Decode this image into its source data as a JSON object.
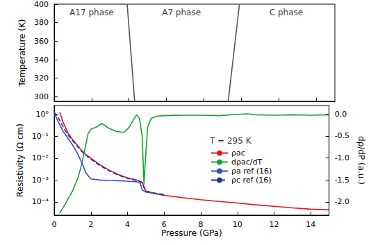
{
  "chart_data": [
    {
      "type": "line",
      "ylabel": "Temperature (K)",
      "xlim": [
        0,
        15
      ],
      "xticks": [
        0,
        2,
        4,
        6,
        8,
        10,
        12,
        14
      ],
      "ylim": [
        295,
        400
      ],
      "yticks": [
        300,
        320,
        340,
        360,
        380,
        400
      ],
      "grid": false,
      "tick_labels": "y",
      "series": [
        {
          "color": "#555555",
          "line_style": "solid",
          "x": [
            4.3,
            3.9
          ],
          "values": [
            295,
            400
          ]
        },
        {
          "color": "#555555",
          "line_style": "solid",
          "x": [
            9.3,
            9.9
          ],
          "values": [
            295,
            400
          ]
        }
      ],
      "annotations": [
        {
          "text": "A17 phase",
          "x": 2.0,
          "y": 391
        },
        {
          "text": "A7 phase",
          "x": 6.8,
          "y": 391
        },
        {
          "text": "C phase",
          "x": 12.4,
          "y": 391
        }
      ]
    },
    {
      "type": "line",
      "xlabel": "Pressure (GPa)",
      "ylabel": "Resistivity (Ω cm)",
      "y2label": "dρ/dP (a.u.)",
      "log": "y",
      "grid": false,
      "legend": "right",
      "xlim": [
        0,
        15
      ],
      "xticks": [
        0,
        2,
        4,
        6,
        8,
        10,
        12,
        14
      ],
      "ylim": [
        2.5e-05,
        2.5
      ],
      "yticks": [
        {
          "value": 0.0001,
          "label": "10⁻⁴"
        },
        {
          "value": 0.001,
          "label": "10⁻³"
        },
        {
          "value": 0.01,
          "label": "10⁻²"
        },
        {
          "value": 0.1,
          "label": "10⁻¹"
        },
        {
          "value": 1,
          "label": "10⁰"
        }
      ],
      "y2lim": [
        -2.3,
        0.19
      ],
      "y2ticks": [
        {
          "value": -2,
          "label": "-2.0"
        },
        -1.5,
        {
          "value": -1,
          "label": "-1.0"
        },
        -0.5,
        {
          "value": 0,
          "label": "0.0"
        }
      ],
      "series": [
        {
          "name": "ρac",
          "color": "#e8141c",
          "line_style": "solid",
          "x": [
            0.3,
            0.5,
            0.75,
            1.0,
            1.25,
            1.5,
            1.75,
            2.0,
            2.5,
            3.0,
            3.5,
            4.0,
            4.5,
            4.8,
            4.9,
            5.0,
            5.2,
            5.5,
            6,
            7,
            8,
            9,
            10,
            11,
            12,
            13,
            14,
            15
          ],
          "values": [
            1.26,
            0.4,
            0.141,
            0.0708,
            0.0398,
            0.0224,
            0.0141,
            0.01,
            0.005,
            0.00282,
            0.00178,
            0.00126,
            0.001,
            0.000794,
            0.000501,
            0.000316,
            0.000282,
            0.00024,
            0.0002,
            0.000158,
            0.000126,
            0.000105,
            8.91e-05,
            7.41e-05,
            6.31e-05,
            5.37e-05,
            4.68e-05,
            4.37e-05
          ]
        },
        {
          "name": "dρac/dT",
          "color": "#12a33a",
          "line_style": "solid",
          "axis": "y2",
          "x": [
            0.3,
            0.6,
            1.0,
            1.3,
            1.5,
            1.7,
            1.85,
            2.0,
            2.3,
            2.6,
            3.0,
            3.4,
            3.8,
            4.1,
            4.3,
            4.5,
            4.65,
            4.8,
            4.9,
            5.0,
            5.1,
            5.3,
            5.6,
            6,
            7,
            8,
            9,
            10,
            10.5,
            11,
            12,
            13,
            14,
            15
          ],
          "values": [
            -2.25,
            -2.05,
            -1.75,
            -1.45,
            -1.15,
            -0.75,
            -0.45,
            -0.35,
            -0.3,
            -0.22,
            -0.33,
            -0.4,
            -0.42,
            -0.3,
            -0.15,
            -0.02,
            -0.1,
            -0.5,
            -1.6,
            -0.9,
            -0.3,
            -0.1,
            -0.05,
            -0.04,
            -0.03,
            -0.03,
            -0.04,
            -0.01,
            0.0,
            -0.02,
            -0.03,
            -0.02,
            -0.03,
            -0.02
          ]
        },
        {
          "name": "ρa ref (16)",
          "color": "#3848c8",
          "line_style": "solid",
          "x": [
            0,
            0.25,
            0.5,
            0.75,
            1.0,
            1.25,
            1.5,
            1.75,
            2.0,
            2.5,
            3,
            3.5,
            4,
            4.5,
            4.7,
            4.8,
            5.0,
            5.5,
            6.0
          ],
          "values": [
            1.12,
            0.398,
            0.158,
            0.0794,
            0.0398,
            0.0178,
            0.00631,
            0.002,
            0.00112,
            0.001,
            0.000955,
            0.000933,
            0.000891,
            0.000832,
            0.000708,
            0.000355,
            0.000282,
            0.00024,
            0.000209
          ]
        },
        {
          "name": "ρc ref (16)",
          "color": "#1a2fa0",
          "line_style": "dashed",
          "x": [
            0,
            0.25,
            0.5,
            0.75,
            1,
            1.5,
            2,
            2.5,
            3,
            3.5,
            4,
            4.5,
            4.8,
            4.9,
            5,
            5.5,
            6
          ],
          "values": [
            1.26,
            0.631,
            0.251,
            0.112,
            0.0631,
            0.02,
            0.00891,
            0.00447,
            0.00263,
            0.00166,
            0.0012,
            0.000955,
            0.000759,
            0.000447,
            0.000316,
            0.000251,
            0.000219
          ]
        }
      ],
      "annotations": [
        {
          "text": "T = 295 K",
          "x": 8.3,
          "y": 0.06
        }
      ]
    }
  ]
}
